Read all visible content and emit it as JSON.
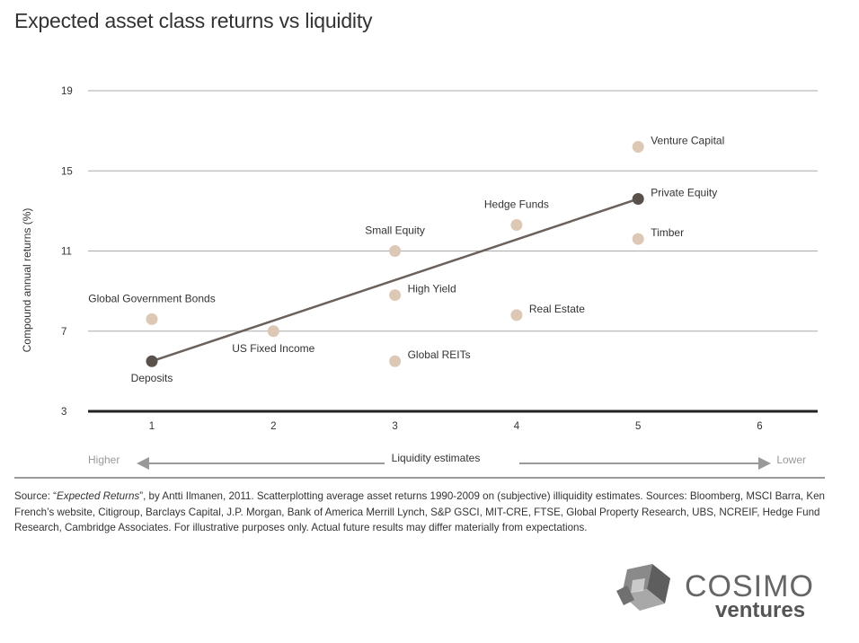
{
  "title": "Expected asset class returns vs liquidity",
  "chart_data": {
    "type": "scatter",
    "title": "Expected asset class returns vs liquidity",
    "xlabel": "Liquidity estimates",
    "ylabel": "Compound annual returns (%)",
    "xlim": [
      0.5,
      6.5
    ],
    "ylim": [
      3,
      19
    ],
    "xticks": [
      1,
      2,
      3,
      4,
      5,
      6
    ],
    "yticks": [
      3,
      7,
      11,
      15,
      19
    ],
    "liquidity_left": "Higher",
    "liquidity_right": "Lower",
    "points": [
      {
        "name": "Deposits",
        "x": 1,
        "y": 5.5,
        "highlight": true,
        "label_pos": "below"
      },
      {
        "name": "Global Government Bonds",
        "x": 1,
        "y": 7.6,
        "highlight": false,
        "label_pos": "above"
      },
      {
        "name": "US Fixed Income",
        "x": 2,
        "y": 7.0,
        "highlight": false,
        "label_pos": "below"
      },
      {
        "name": "Small Equity",
        "x": 3,
        "y": 11.0,
        "highlight": false,
        "label_pos": "above"
      },
      {
        "name": "High Yield",
        "x": 3,
        "y": 8.8,
        "highlight": false,
        "label_pos": "right"
      },
      {
        "name": "Global REITs",
        "x": 3,
        "y": 5.5,
        "highlight": false,
        "label_pos": "right"
      },
      {
        "name": "Hedge Funds",
        "x": 4,
        "y": 12.3,
        "highlight": false,
        "label_pos": "above"
      },
      {
        "name": "Real Estate",
        "x": 4,
        "y": 7.8,
        "highlight": false,
        "label_pos": "right"
      },
      {
        "name": "Venture Capital",
        "x": 5,
        "y": 16.2,
        "highlight": false,
        "label_pos": "right"
      },
      {
        "name": "Private Equity",
        "x": 5,
        "y": 13.6,
        "highlight": true,
        "label_pos": "right"
      },
      {
        "name": "Timber",
        "x": 5,
        "y": 11.6,
        "highlight": false,
        "label_pos": "right"
      }
    ],
    "trend_line": {
      "from": [
        1,
        5.5
      ],
      "to": [
        5,
        13.6
      ]
    },
    "colors": {
      "point": "#dcc8b4",
      "highlight": "#5a504c",
      "line": "#6a605c",
      "grid": "#aaaaaa",
      "axis": "#222222"
    }
  },
  "source": {
    "prefix": "Source: “",
    "book": "Expected Returns",
    "rest": "”, by Antti Ilmanen, 2011. Scatterplotting average asset returns 1990-2009 on (subjective) illiquidity estimates. Sources: Bloomberg, MSCI Barra, Ken French’s website, Citigroup, Barclays Capital, J.P. Morgan, Bank of America Merrill Lynch, S&P GSCI, MIT-CRE, FTSE, Global Property Research, UBS, NCREIF, Hedge Fund Research, Cambridge Associates. For illustrative purposes only. Actual future results may differ materially from expectations."
  },
  "logo": {
    "line1": "COSIMO",
    "line2": "ventures"
  }
}
